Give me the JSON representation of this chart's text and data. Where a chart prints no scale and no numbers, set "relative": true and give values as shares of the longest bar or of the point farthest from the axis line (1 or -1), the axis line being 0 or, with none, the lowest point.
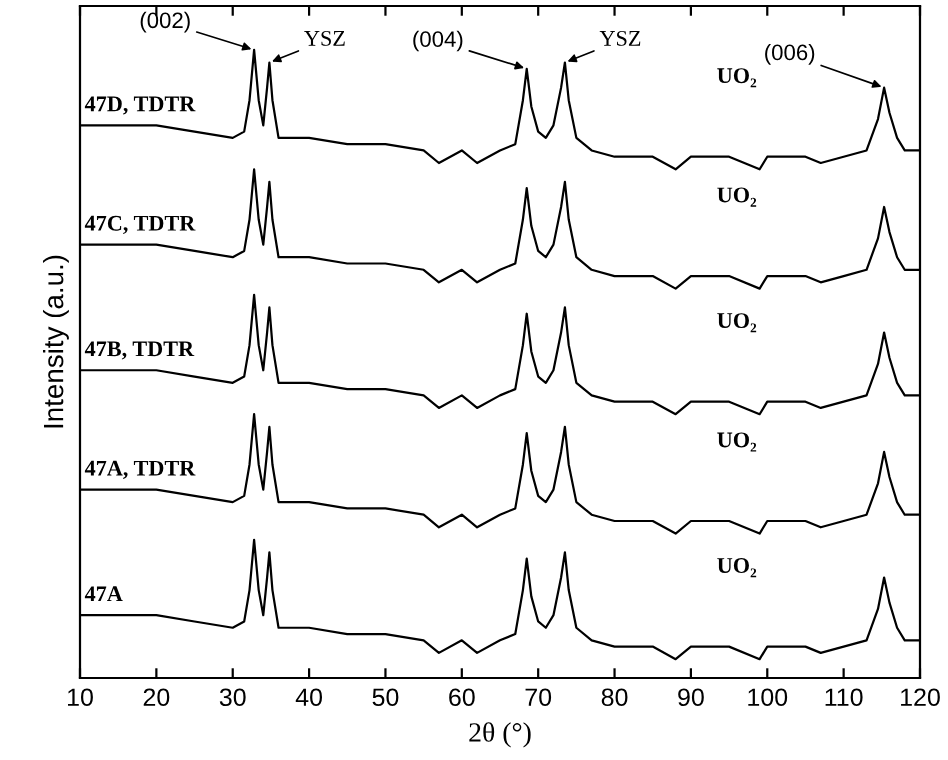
{
  "chart_data": {
    "type": "line",
    "relative": true,
    "xlabel": "2θ (°)",
    "ylabel": "Intensity (a.u.)",
    "xlim": [
      10,
      120
    ],
    "xticks": [
      10,
      20,
      30,
      40,
      50,
      60,
      70,
      80,
      90,
      100,
      110,
      120
    ],
    "tick_labels": "x",
    "grid": false,
    "x": [
      10,
      15,
      20,
      25,
      30,
      31.5,
      32.2,
      32.8,
      33.4,
      34.0,
      34.5,
      34.8,
      35.2,
      36,
      40,
      45,
      50,
      55,
      57,
      60,
      62,
      65,
      67,
      68.0,
      68.5,
      69.1,
      70,
      71,
      72,
      73,
      73.5,
      74,
      75,
      77,
      80,
      85,
      88,
      90,
      95,
      99,
      100,
      105,
      107,
      110,
      113,
      114.5,
      115.3,
      116,
      117,
      118,
      120
    ],
    "series": [
      {
        "name": "47D, TDTR",
        "color": "#000000",
        "values": [
          0.88,
          0.88,
          0.88,
          0.87,
          0.86,
          0.87,
          0.92,
          1.0,
          0.92,
          0.88,
          0.94,
          0.98,
          0.92,
          0.86,
          0.86,
          0.85,
          0.85,
          0.84,
          0.82,
          0.84,
          0.82,
          0.84,
          0.85,
          0.92,
          0.97,
          0.91,
          0.87,
          0.86,
          0.88,
          0.94,
          0.98,
          0.92,
          0.86,
          0.84,
          0.83,
          0.83,
          0.81,
          0.83,
          0.83,
          0.81,
          0.83,
          0.83,
          0.82,
          0.83,
          0.84,
          0.89,
          0.94,
          0.9,
          0.86,
          0.84,
          0.84
        ]
      },
      {
        "name": "47C, TDTR",
        "color": "#000000",
        "values": [
          0.69,
          0.69,
          0.69,
          0.68,
          0.67,
          0.68,
          0.73,
          0.81,
          0.73,
          0.69,
          0.75,
          0.79,
          0.73,
          0.67,
          0.67,
          0.66,
          0.66,
          0.65,
          0.63,
          0.65,
          0.63,
          0.65,
          0.66,
          0.73,
          0.78,
          0.72,
          0.68,
          0.67,
          0.69,
          0.75,
          0.79,
          0.73,
          0.67,
          0.65,
          0.64,
          0.64,
          0.62,
          0.64,
          0.64,
          0.62,
          0.64,
          0.64,
          0.63,
          0.64,
          0.65,
          0.7,
          0.75,
          0.71,
          0.67,
          0.65,
          0.65
        ]
      },
      {
        "name": "47B, TDTR",
        "color": "#000000",
        "values": [
          0.49,
          0.49,
          0.49,
          0.48,
          0.47,
          0.48,
          0.53,
          0.61,
          0.53,
          0.49,
          0.55,
          0.59,
          0.53,
          0.47,
          0.47,
          0.46,
          0.46,
          0.45,
          0.43,
          0.45,
          0.43,
          0.45,
          0.46,
          0.53,
          0.58,
          0.52,
          0.48,
          0.47,
          0.49,
          0.55,
          0.59,
          0.53,
          0.47,
          0.45,
          0.44,
          0.44,
          0.42,
          0.44,
          0.44,
          0.42,
          0.44,
          0.44,
          0.43,
          0.44,
          0.45,
          0.5,
          0.55,
          0.51,
          0.47,
          0.45,
          0.45
        ]
      },
      {
        "name": "47A, TDTR",
        "color": "#000000",
        "values": [
          0.3,
          0.3,
          0.3,
          0.29,
          0.28,
          0.29,
          0.34,
          0.42,
          0.34,
          0.3,
          0.36,
          0.4,
          0.34,
          0.28,
          0.28,
          0.27,
          0.27,
          0.26,
          0.24,
          0.26,
          0.24,
          0.26,
          0.27,
          0.34,
          0.39,
          0.33,
          0.29,
          0.28,
          0.3,
          0.36,
          0.4,
          0.34,
          0.28,
          0.26,
          0.25,
          0.25,
          0.23,
          0.25,
          0.25,
          0.23,
          0.25,
          0.25,
          0.24,
          0.25,
          0.26,
          0.31,
          0.36,
          0.32,
          0.28,
          0.26,
          0.26
        ]
      },
      {
        "name": "47A",
        "color": "#000000",
        "values": [
          0.1,
          0.1,
          0.1,
          0.09,
          0.08,
          0.09,
          0.14,
          0.22,
          0.14,
          0.1,
          0.16,
          0.2,
          0.14,
          0.08,
          0.08,
          0.07,
          0.07,
          0.06,
          0.04,
          0.06,
          0.04,
          0.06,
          0.07,
          0.14,
          0.19,
          0.13,
          0.09,
          0.08,
          0.1,
          0.16,
          0.2,
          0.14,
          0.08,
          0.06,
          0.05,
          0.05,
          0.03,
          0.05,
          0.05,
          0.03,
          0.05,
          0.05,
          0.04,
          0.05,
          0.06,
          0.11,
          0.16,
          0.12,
          0.08,
          0.06,
          0.06
        ]
      }
    ],
    "annotations": [
      {
        "text": "(002)",
        "x": 32.8,
        "y": 1.0
      },
      {
        "text": "YSZ",
        "x": 34.8,
        "y": 0.98
      },
      {
        "text": "(004)",
        "x": 68.5,
        "y": 0.97
      },
      {
        "text": "YSZ",
        "x": 73.5,
        "y": 0.98
      },
      {
        "text": "(006)",
        "x": 115.3,
        "y": 0.94
      },
      "UO₂",
      "UO₂",
      "UO₂",
      "UO₂",
      "UO₂"
    ]
  }
}
